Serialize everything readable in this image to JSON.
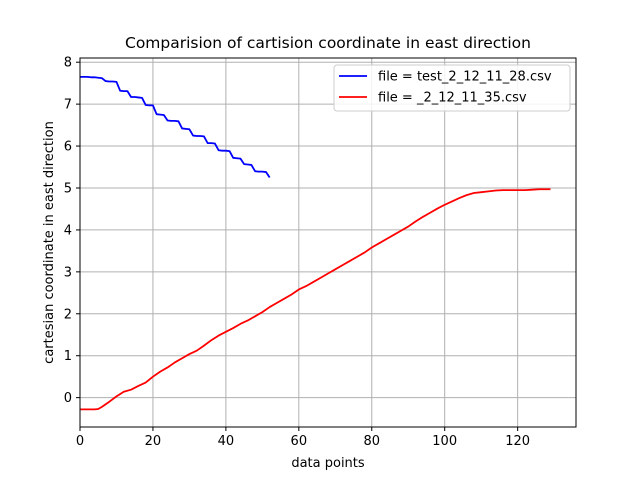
{
  "chart_data": {
    "type": "line",
    "title": "Comparision of cartision coordinate in east direction",
    "xlabel": "data points",
    "ylabel": "cartesian coordinate in east direction",
    "xlim": [
      0,
      136
    ],
    "ylim": [
      -0.7,
      8.1
    ],
    "xticks": [
      0,
      20,
      40,
      60,
      80,
      100,
      120
    ],
    "yticks": [
      0,
      1,
      2,
      3,
      4,
      5,
      6,
      7,
      8
    ],
    "grid": true,
    "legend_position": "top-right",
    "series": [
      {
        "name": "file = test_2_12_11_28.csv",
        "color": "#0000ff",
        "x": [
          0,
          1,
          2,
          3,
          4,
          5,
          6,
          7,
          8,
          9,
          10,
          11,
          12,
          13,
          14,
          15,
          16,
          17,
          18,
          19,
          20,
          21,
          22,
          23,
          24,
          25,
          26,
          27,
          28,
          29,
          30,
          31,
          32,
          33,
          34,
          35,
          36,
          37,
          38,
          39,
          40,
          41,
          42,
          43,
          44,
          45,
          46,
          47,
          48,
          49,
          50,
          51,
          52
        ],
        "y": [
          7.65,
          7.65,
          7.65,
          7.64,
          7.64,
          7.63,
          7.62,
          7.55,
          7.54,
          7.54,
          7.53,
          7.32,
          7.31,
          7.31,
          7.17,
          7.17,
          7.16,
          7.15,
          6.98,
          6.97,
          6.97,
          6.76,
          6.75,
          6.74,
          6.61,
          6.6,
          6.6,
          6.59,
          6.42,
          6.41,
          6.4,
          6.25,
          6.24,
          6.24,
          6.23,
          6.07,
          6.07,
          6.06,
          5.9,
          5.89,
          5.89,
          5.88,
          5.72,
          5.71,
          5.7,
          5.57,
          5.56,
          5.55,
          5.4,
          5.39,
          5.39,
          5.38,
          5.25
        ]
      },
      {
        "name": "file = _2_12_11_35.csv",
        "color": "#ff0000",
        "x": [
          0,
          2,
          4,
          5,
          6,
          8,
          10,
          12,
          14,
          16,
          18,
          20,
          22,
          24,
          26,
          28,
          30,
          32,
          34,
          36,
          38,
          40,
          42,
          44,
          46,
          48,
          50,
          52,
          54,
          56,
          58,
          60,
          62,
          64,
          66,
          68,
          70,
          72,
          74,
          76,
          78,
          80,
          82,
          84,
          86,
          88,
          90,
          92,
          94,
          96,
          98,
          100,
          102,
          104,
          106,
          108,
          110,
          112,
          114,
          116,
          118,
          120,
          122,
          124,
          126,
          128,
          129
        ],
        "y": [
          -0.28,
          -0.28,
          -0.28,
          -0.27,
          -0.22,
          -0.1,
          0.03,
          0.14,
          0.19,
          0.28,
          0.36,
          0.5,
          0.62,
          0.72,
          0.84,
          0.94,
          1.04,
          1.12,
          1.24,
          1.37,
          1.48,
          1.57,
          1.66,
          1.76,
          1.84,
          1.94,
          2.04,
          2.16,
          2.26,
          2.36,
          2.46,
          2.58,
          2.66,
          2.76,
          2.86,
          2.96,
          3.06,
          3.16,
          3.26,
          3.36,
          3.46,
          3.58,
          3.68,
          3.78,
          3.88,
          3.98,
          4.08,
          4.2,
          4.31,
          4.41,
          4.51,
          4.6,
          4.68,
          4.76,
          4.83,
          4.88,
          4.9,
          4.92,
          4.94,
          4.95,
          4.95,
          4.95,
          4.95,
          4.96,
          4.97,
          4.97,
          4.97
        ]
      }
    ]
  }
}
